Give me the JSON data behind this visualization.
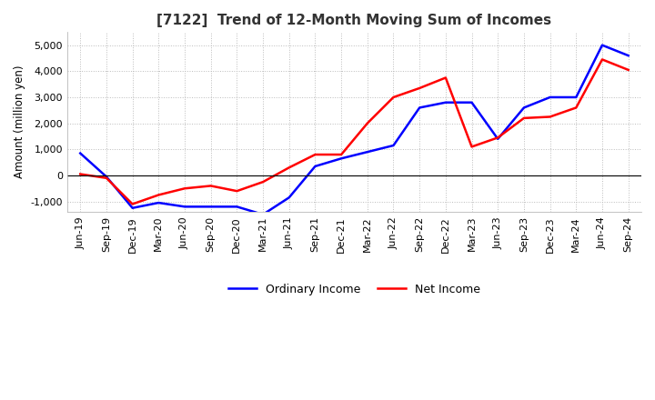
{
  "title": "[7122]  Trend of 12-Month Moving Sum of Incomes",
  "ylabel": "Amount (million yen)",
  "background_color": "#ffffff",
  "grid_color": "#bbbbbb",
  "ylim": [
    -1400,
    5500
  ],
  "yticks": [
    -1000,
    0,
    1000,
    2000,
    3000,
    4000,
    5000
  ],
  "x_labels": [
    "Jun-19",
    "Sep-19",
    "Dec-19",
    "Mar-20",
    "Jun-20",
    "Sep-20",
    "Dec-20",
    "Mar-21",
    "Jun-21",
    "Sep-21",
    "Dec-21",
    "Mar-22",
    "Jun-22",
    "Sep-22",
    "Dec-22",
    "Mar-23",
    "Jun-23",
    "Sep-23",
    "Dec-23",
    "Mar-24",
    "Jun-24",
    "Sep-24"
  ],
  "ordinary_income": [
    850,
    -50,
    -1250,
    -1050,
    -1200,
    -1200,
    -1200,
    -1500,
    -850,
    350,
    650,
    900,
    1150,
    2600,
    2800,
    2800,
    1400,
    2600,
    3000,
    3000,
    5000,
    4600
  ],
  "net_income": [
    50,
    -100,
    -1100,
    -750,
    -500,
    -400,
    -600,
    -250,
    300,
    800,
    800,
    2000,
    3000,
    3350,
    3750,
    1100,
    1450,
    2200,
    2250,
    2600,
    4450,
    4050
  ],
  "ordinary_color": "#0000ff",
  "net_color": "#ff0000",
  "legend_labels": [
    "Ordinary Income",
    "Net Income"
  ]
}
